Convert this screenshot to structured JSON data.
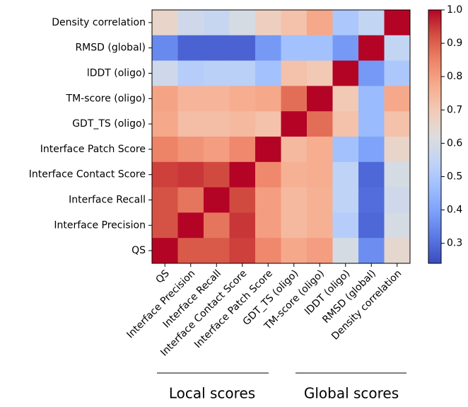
{
  "chart_data": {
    "type": "heatmap",
    "colormap": "coolwarm",
    "clim": [
      0.24,
      1.0
    ],
    "rows": [
      "Density correlation",
      "RMSD (global)",
      "lDDT (oligo)",
      "TM-score (oligo)",
      "GDT_TS (oligo)",
      "Interface Patch Score",
      "Interface Contact Score",
      "Interface Recall",
      "Interface Precision",
      "QS"
    ],
    "columns": [
      "QS",
      "Interface Precision",
      "Interface Recall",
      "Interface Contact Score",
      "Interface Patch Score",
      "GDT_TS (oligo)",
      "TM-score (oligo)",
      "lDDT (oligo)",
      "RMSD (global)",
      "Density correlation"
    ],
    "values": [
      [
        0.66,
        0.58,
        0.56,
        0.6,
        0.68,
        0.72,
        0.78,
        0.5,
        0.55,
        1.0
      ],
      [
        0.35,
        0.28,
        0.28,
        0.28,
        0.38,
        0.48,
        0.48,
        0.38,
        1.0,
        0.55
      ],
      [
        0.58,
        0.52,
        0.53,
        0.53,
        0.48,
        0.72,
        0.7,
        1.0,
        0.38,
        0.5
      ],
      [
        0.79,
        0.75,
        0.75,
        0.77,
        0.78,
        0.88,
        1.0,
        0.7,
        0.46,
        0.78
      ],
      [
        0.78,
        0.73,
        0.73,
        0.74,
        0.72,
        1.0,
        0.88,
        0.72,
        0.46,
        0.72
      ],
      [
        0.85,
        0.82,
        0.8,
        0.84,
        1.0,
        0.74,
        0.77,
        0.48,
        0.4,
        0.66
      ],
      [
        0.94,
        0.95,
        0.93,
        1.0,
        0.84,
        0.76,
        0.77,
        0.54,
        0.29,
        0.6
      ],
      [
        0.92,
        0.87,
        1.0,
        0.93,
        0.8,
        0.74,
        0.76,
        0.54,
        0.3,
        0.58
      ],
      [
        0.92,
        1.0,
        0.87,
        0.95,
        0.8,
        0.74,
        0.76,
        0.52,
        0.29,
        0.6
      ],
      [
        1.0,
        0.91,
        0.91,
        0.94,
        0.84,
        0.78,
        0.8,
        0.6,
        0.36,
        0.65
      ]
    ],
    "colorbar_ticks": [
      0.3,
      0.4,
      0.5,
      0.6,
      0.7,
      0.8,
      0.9,
      {
        "value": 1.0,
        "label": "1.0"
      }
    ],
    "annotations": [
      "Local scores",
      "Global scores"
    ]
  }
}
